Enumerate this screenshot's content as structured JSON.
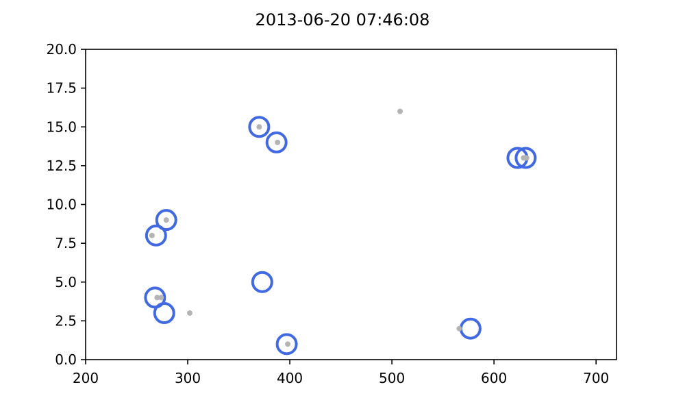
{
  "chart_data": {
    "type": "scatter",
    "title": "2013-06-20 07:46:08",
    "xlabel": "",
    "ylabel": "",
    "xlim": [
      200,
      720
    ],
    "ylim": [
      0,
      20
    ],
    "xticks": [
      "200",
      "300",
      "400",
      "500",
      "600",
      "700"
    ],
    "yticks": [
      "0.0",
      "2.5",
      "5.0",
      "7.5",
      "10.0",
      "12.5",
      "15.0",
      "17.5",
      "20.0"
    ],
    "grid": false,
    "series": [
      {
        "marker": "hollow-circle",
        "color": "#4169e1",
        "points": [
          {
            "x": 370,
            "y": 15
          },
          {
            "x": 387,
            "y": 14
          },
          {
            "x": 623,
            "y": 13
          },
          {
            "x": 631,
            "y": 13
          },
          {
            "x": 279,
            "y": 9
          },
          {
            "x": 269,
            "y": 8
          },
          {
            "x": 373,
            "y": 5
          },
          {
            "x": 268,
            "y": 4
          },
          {
            "x": 277,
            "y": 3
          },
          {
            "x": 577,
            "y": 2
          },
          {
            "x": 397,
            "y": 1
          }
        ]
      },
      {
        "marker": "small-dot",
        "color": "#b4b4b4",
        "points": [
          {
            "x": 508,
            "y": 16
          },
          {
            "x": 370,
            "y": 15
          },
          {
            "x": 388,
            "y": 14
          },
          {
            "x": 629,
            "y": 13
          },
          {
            "x": 632,
            "y": 13
          },
          {
            "x": 279,
            "y": 9
          },
          {
            "x": 265,
            "y": 8
          },
          {
            "x": 270,
            "y": 4
          },
          {
            "x": 274,
            "y": 4
          },
          {
            "x": 302,
            "y": 3
          },
          {
            "x": 566,
            "y": 2
          },
          {
            "x": 398,
            "y": 1
          }
        ]
      }
    ]
  }
}
